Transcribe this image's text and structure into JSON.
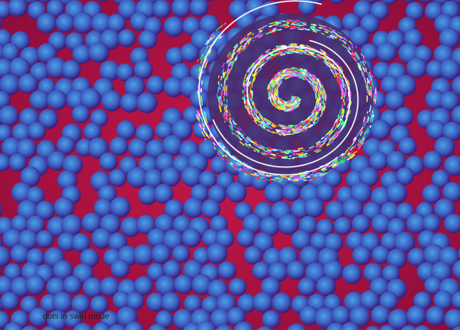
{
  "caption": "dots in swirl mode",
  "colors": {
    "background": "#b01040",
    "dot_center": "#4aa0e6",
    "dot_mid": "#3f64c4",
    "dot_edge": "#3a1a78",
    "swirl_palette": [
      "#ffffff",
      "#e040ff",
      "#30ff60",
      "#ffd020",
      "#40a0ff",
      "#ff3030",
      "#ff80ff",
      "#60ffff",
      "#c0ff40"
    ]
  },
  "icons": [
    "dot-pattern",
    "swirl"
  ]
}
